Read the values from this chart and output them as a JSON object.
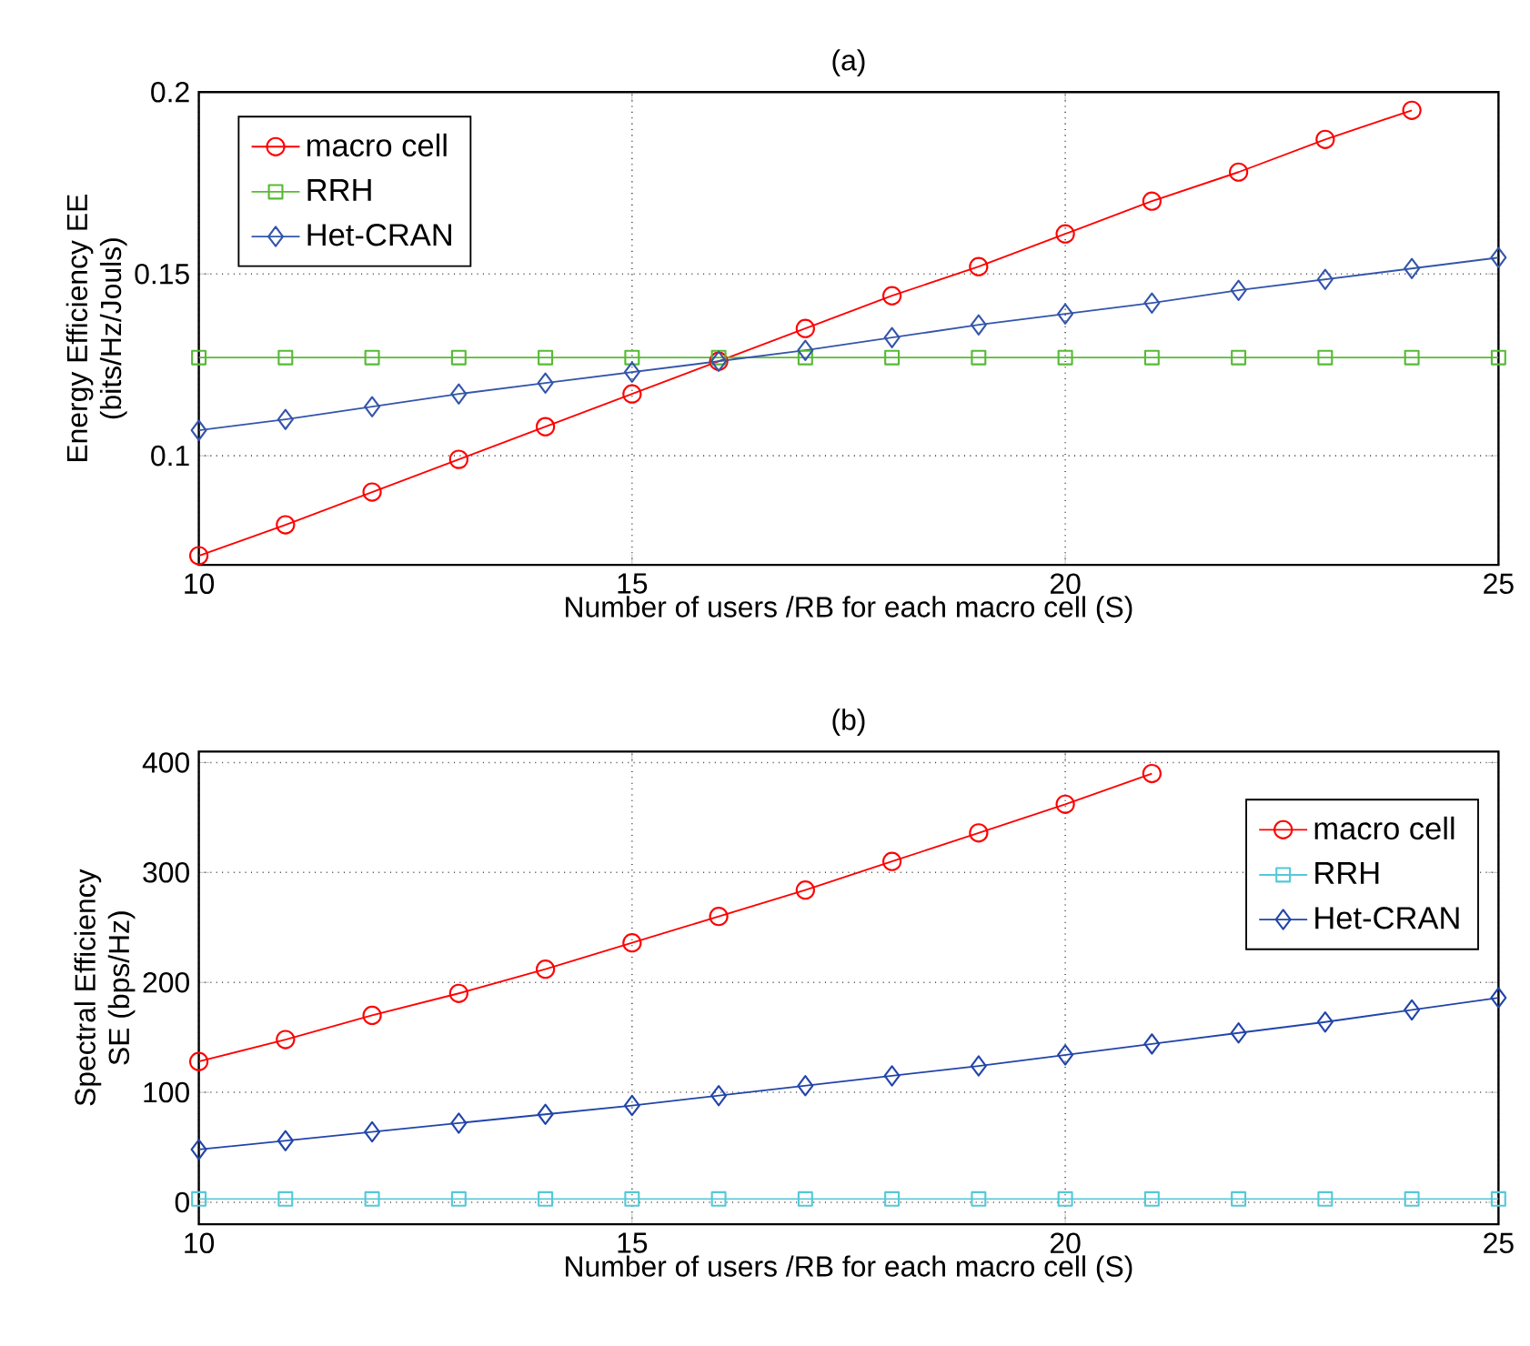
{
  "chart_data": [
    {
      "type": "line",
      "title": "(a)",
      "xlabel": "Number of users /RB for each macro cell  (S)",
      "ylabel": "Energy Efficiency EE\n(bits/Hz/Jouls)",
      "x": [
        10,
        11,
        12,
        13,
        14,
        15,
        16,
        17,
        18,
        19,
        20,
        21,
        22,
        23,
        24,
        25
      ],
      "series": [
        {
          "name": "macro cell",
          "color": "#ff0000",
          "marker": "circle",
          "values": [
            0.0725,
            0.081,
            0.09,
            0.099,
            0.108,
            0.117,
            0.126,
            0.135,
            0.144,
            0.152,
            0.161,
            0.17,
            0.178,
            0.187,
            0.195,
            null
          ]
        },
        {
          "name": "RRH",
          "color": "#55bb33",
          "marker": "square",
          "values": [
            0.127,
            0.127,
            0.127,
            0.127,
            0.127,
            0.127,
            0.127,
            0.127,
            0.127,
            0.127,
            0.127,
            0.127,
            0.127,
            0.127,
            0.127,
            0.127
          ]
        },
        {
          "name": "Het-CRAN",
          "color": "#3355aa",
          "marker": "diamond",
          "values": [
            0.107,
            0.11,
            0.1135,
            0.117,
            0.12,
            0.123,
            0.126,
            0.129,
            0.1325,
            0.136,
            0.139,
            0.142,
            0.1455,
            0.1485,
            0.1515,
            0.1545
          ]
        }
      ],
      "xlim": [
        10,
        25
      ],
      "xticks": [
        10,
        15,
        20,
        25
      ],
      "ylim": [
        0.07,
        0.2
      ],
      "yticks": [
        {
          "value": 0.1,
          "label": "0.1"
        },
        {
          "value": 0.15,
          "label": "0.15"
        },
        {
          "value": 0.2,
          "label": "0.2"
        }
      ],
      "grid": true,
      "legend": "top left"
    },
    {
      "type": "line",
      "title": "(b)",
      "xlabel": "Number of users /RB for each macro cell  (S)",
      "ylabel": "Spectral Efficiency\nSE (bps/Hz)",
      "x": [
        10,
        11,
        12,
        13,
        14,
        15,
        16,
        17,
        18,
        19,
        20,
        21,
        22,
        23,
        24,
        25
      ],
      "series": [
        {
          "name": "macro cell",
          "color": "#ff0000",
          "marker": "circle",
          "values": [
            128,
            148,
            170,
            190,
            212,
            236,
            260,
            284,
            310,
            336,
            362,
            390,
            null,
            null,
            null,
            null
          ]
        },
        {
          "name": "RRH",
          "color": "#55c8d8",
          "marker": "square",
          "values": [
            3,
            3,
            3,
            3,
            3,
            3,
            3,
            3,
            3,
            3,
            3,
            3,
            3,
            3,
            3,
            3
          ]
        },
        {
          "name": "Het-CRAN",
          "color": "#2244aa",
          "marker": "diamond",
          "values": [
            48,
            56,
            64,
            72,
            80,
            88,
            97,
            106,
            115,
            124,
            134,
            144,
            154,
            164,
            175,
            186
          ]
        }
      ],
      "xlim": [
        10,
        25
      ],
      "xticks": [
        10,
        15,
        20,
        25
      ],
      "ylim": [
        -20,
        410
      ],
      "yticks": [
        0,
        100,
        200,
        300,
        400
      ],
      "grid": true,
      "legend": "top right"
    }
  ]
}
